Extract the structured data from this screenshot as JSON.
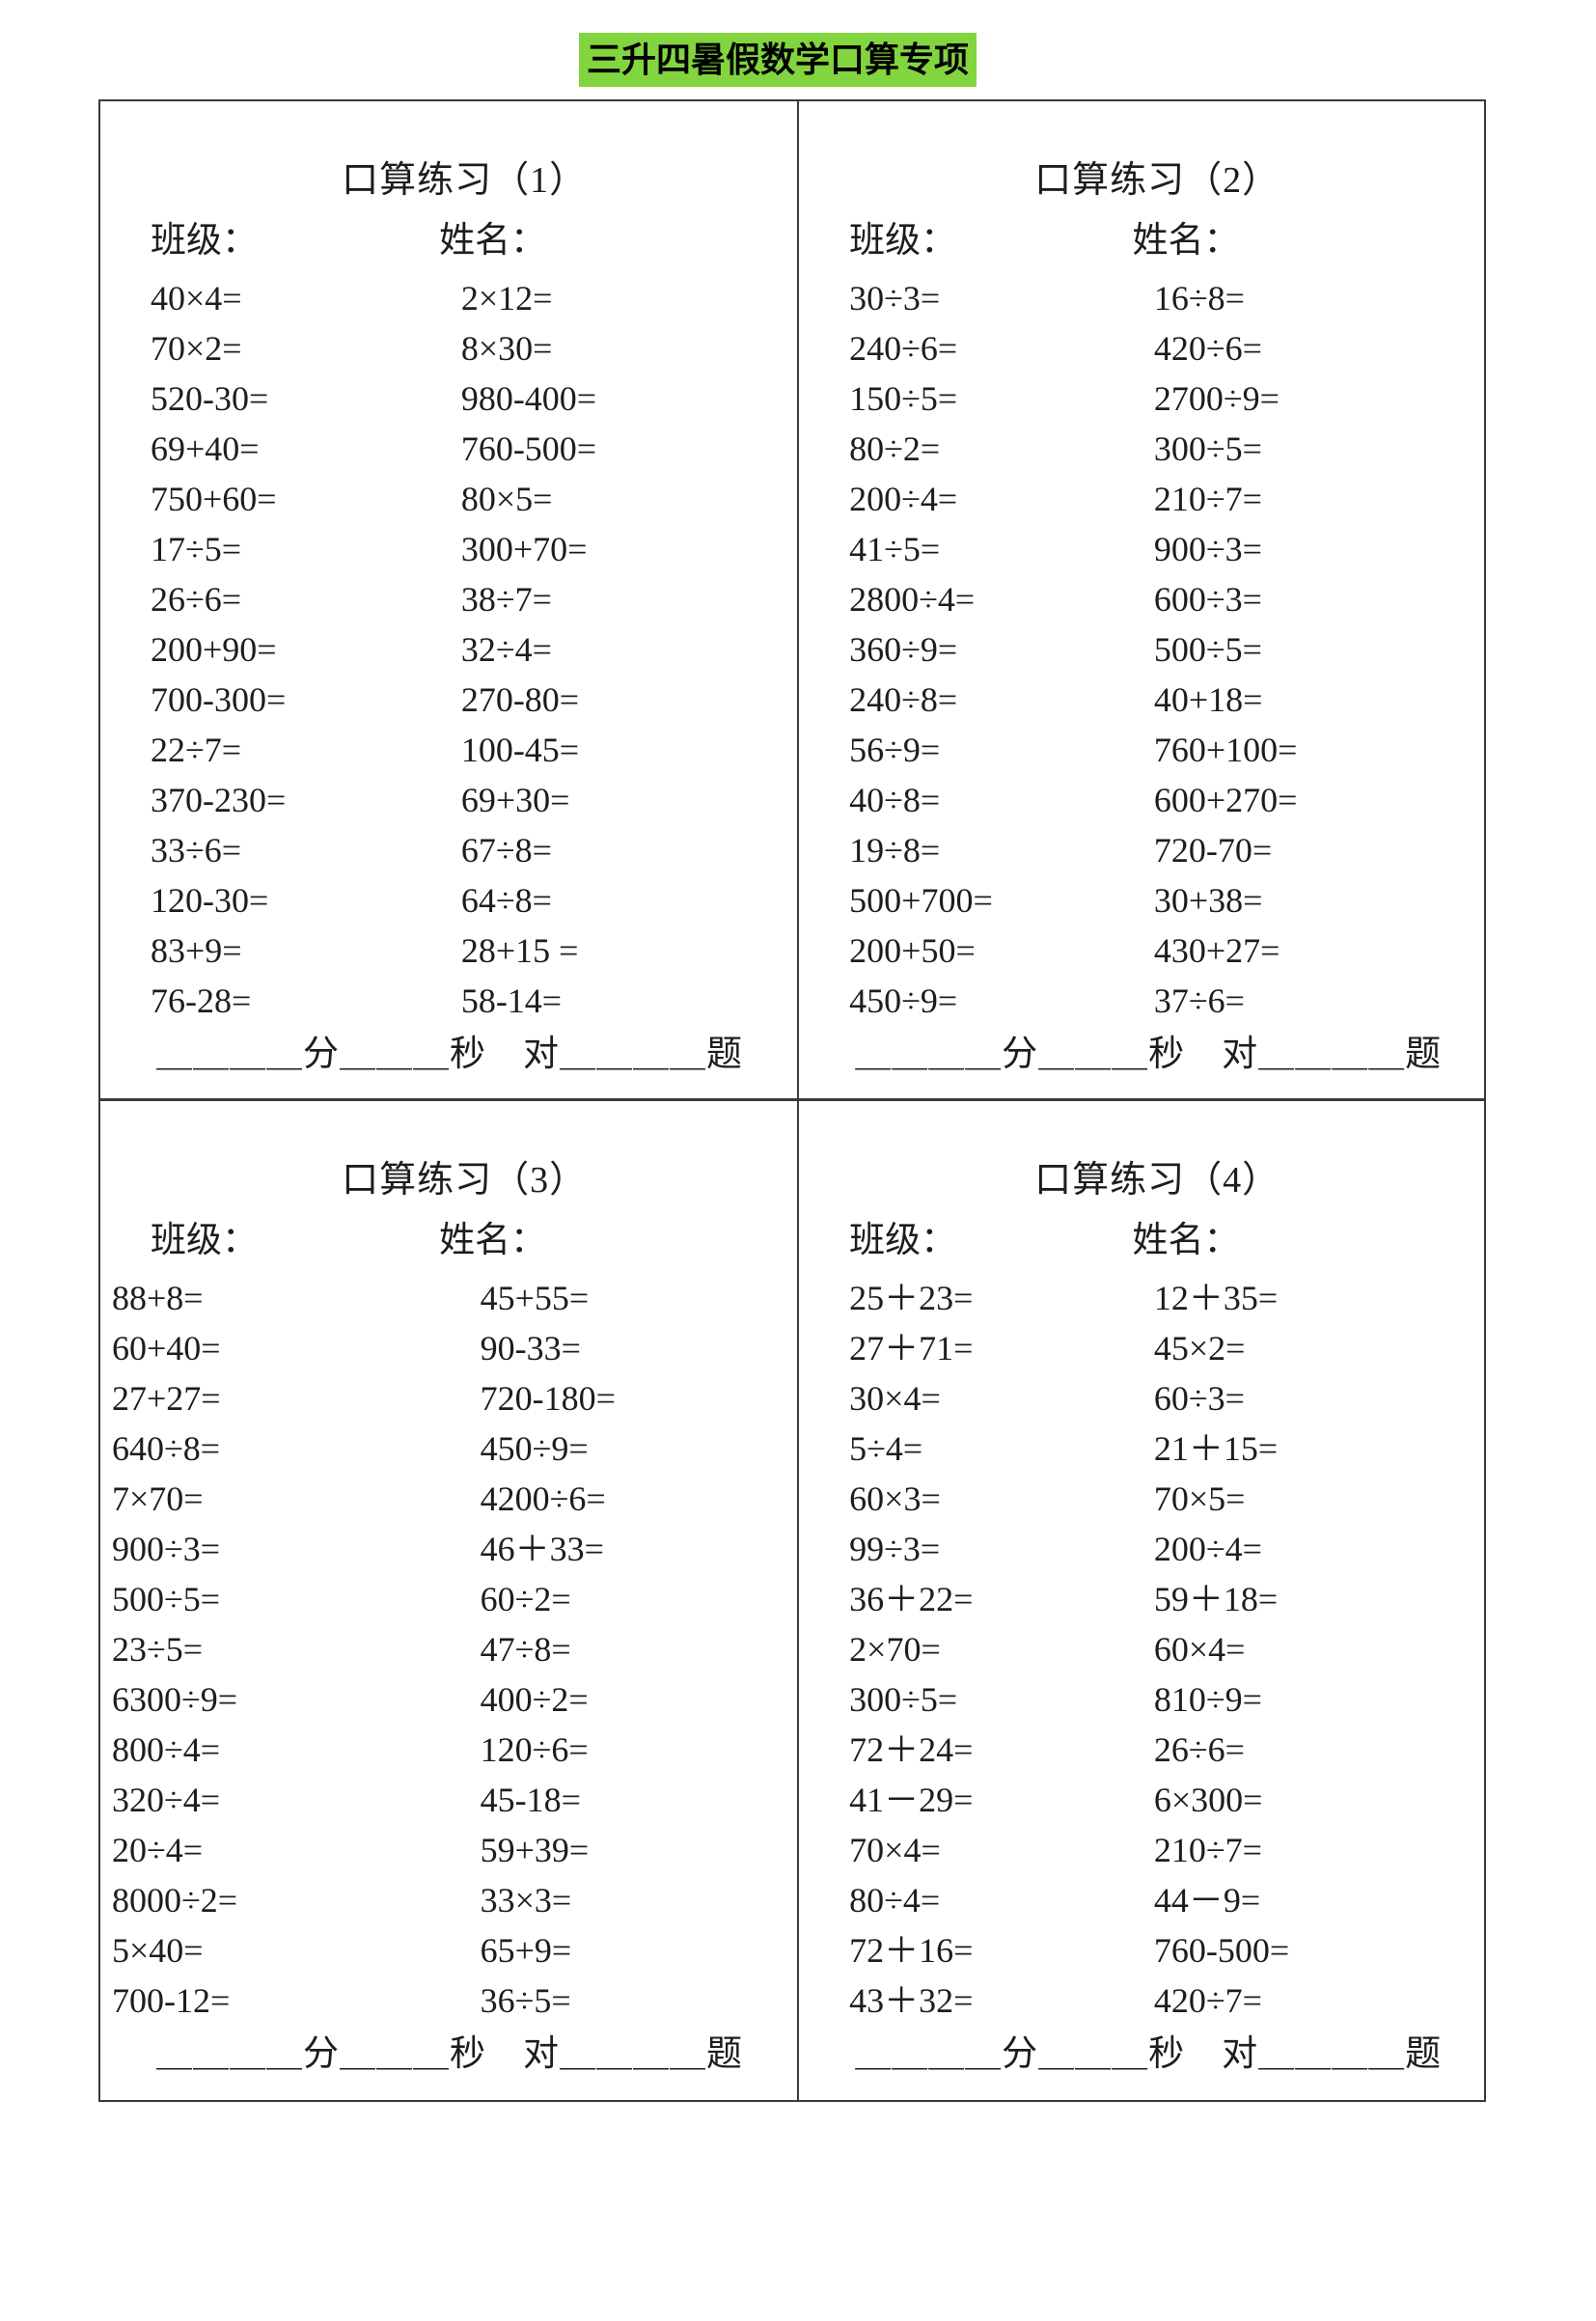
{
  "page_title": "三升四暑假数学口算专项",
  "colors": {
    "highlight_green": "#82d53e",
    "text": "#1d1d1d",
    "border": "#3a3a3a"
  },
  "labels": {
    "class": "班级：",
    "name": "姓名："
  },
  "footer": "＿＿＿＿分＿＿＿秒　对＿＿＿＿题",
  "sections": [
    {
      "title": "口算练习（1）",
      "problems": [
        [
          "40×4=",
          "2×12="
        ],
        [
          "70×2=",
          "8×30="
        ],
        [
          "520-30=",
          "980-400="
        ],
        [
          "69+40=",
          "760-500="
        ],
        [
          "750+60=",
          "80×5="
        ],
        [
          "17÷5=",
          "300+70="
        ],
        [
          "26÷6=",
          "38÷7="
        ],
        [
          "200+90=",
          "32÷4="
        ],
        [
          "700-300=",
          "270-80="
        ],
        [
          "22÷7=",
          "100-45="
        ],
        [
          "370-230=",
          "69+30="
        ],
        [
          "33÷6=",
          "67÷8="
        ],
        [
          "120-30=",
          "64÷8="
        ],
        [
          "83+9=",
          "28+15 ="
        ],
        [
          "76-28=",
          "58-14="
        ]
      ]
    },
    {
      "title": "口算练习（2）",
      "problems": [
        [
          "30÷3=",
          "16÷8="
        ],
        [
          "240÷6=",
          "420÷6="
        ],
        [
          "150÷5=",
          "2700÷9="
        ],
        [
          "80÷2=",
          "300÷5="
        ],
        [
          "200÷4=",
          "210÷7="
        ],
        [
          "41÷5=",
          "900÷3="
        ],
        [
          "2800÷4=",
          "600÷3="
        ],
        [
          "360÷9=",
          "500÷5="
        ],
        [
          "240÷8=",
          "40+18="
        ],
        [
          "56÷9=",
          "760+100="
        ],
        [
          "40÷8=",
          "600+270="
        ],
        [
          "19÷8=",
          "720-70="
        ],
        [
          "500+700=",
          "30+38="
        ],
        [
          "200+50=",
          "430+27="
        ],
        [
          "450÷9=",
          "37÷6="
        ]
      ]
    },
    {
      "title": "口算练习（3）",
      "problems": [
        [
          "88+8=",
          "45+55="
        ],
        [
          "60+40=",
          "90-33="
        ],
        [
          "27+27=",
          "720-180="
        ],
        [
          "640÷8=",
          "450÷9="
        ],
        [
          "7×70=",
          "4200÷6="
        ],
        [
          "900÷3=",
          "46＋33="
        ],
        [
          "500÷5=",
          "60÷2="
        ],
        [
          "23÷5=",
          "47÷8="
        ],
        [
          "6300÷9=",
          "400÷2="
        ],
        [
          "800÷4=",
          "120÷6="
        ],
        [
          "320÷4=",
          "45-18="
        ],
        [
          "20÷4=",
          "59+39="
        ],
        [
          "8000÷2=",
          "33×3="
        ],
        [
          "5×40=",
          "65+9="
        ],
        [
          "700-12=",
          "36÷5="
        ]
      ]
    },
    {
      "title": "口算练习（4）",
      "problems": [
        [
          "25＋23=",
          "12＋35="
        ],
        [
          "27＋71=",
          "45×2="
        ],
        [
          "30×4=",
          "60÷3="
        ],
        [
          "5÷4=",
          "21＋15="
        ],
        [
          "60×3=",
          "70×5="
        ],
        [
          "99÷3=",
          "200÷4="
        ],
        [
          "36＋22=",
          "59＋18="
        ],
        [
          "2×70=",
          "60×4="
        ],
        [
          "300÷5=",
          "810÷9="
        ],
        [
          "72＋24=",
          "26÷6="
        ],
        [
          "41－29=",
          "6×300="
        ],
        [
          "70×4=",
          "210÷7="
        ],
        [
          "80÷4=",
          "44－9="
        ],
        [
          "72＋16=",
          "760-500="
        ],
        [
          "43＋32=",
          "420÷7="
        ]
      ]
    }
  ]
}
